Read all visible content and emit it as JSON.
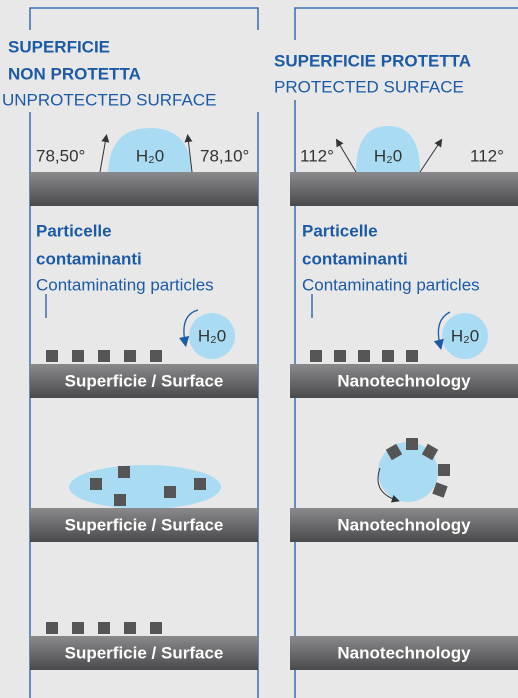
{
  "left": {
    "title_line1": "SUPERFICIE",
    "title_line2": "NON PROTETTA",
    "subtitle": "UNPROTECTED SURFACE",
    "angle_left": "78,50°",
    "angle_right": "78,10°",
    "drop_label": "H₂0",
    "particles_line1": "Particelle",
    "particles_line2": "contaminanti",
    "particles_en": "Contaminating particles",
    "water_label": "H₂0",
    "surfaces": [
      "Superficie / Surface",
      "Superficie / Surface",
      "Superficie / Surface"
    ]
  },
  "right": {
    "title": "SUPERFICIE PROTETTA",
    "subtitle": "PROTECTED SURFACE",
    "angle_left": "112°",
    "angle_right": "112°",
    "drop_label": "H₂0",
    "particles_line1": "Particelle",
    "particles_line2": "contaminanti",
    "particles_en": "Contaminating particles",
    "water_label": "H₂0",
    "surfaces": [
      "Nanotechnology",
      "Nanotechnology",
      "Nanotechnology"
    ]
  }
}
